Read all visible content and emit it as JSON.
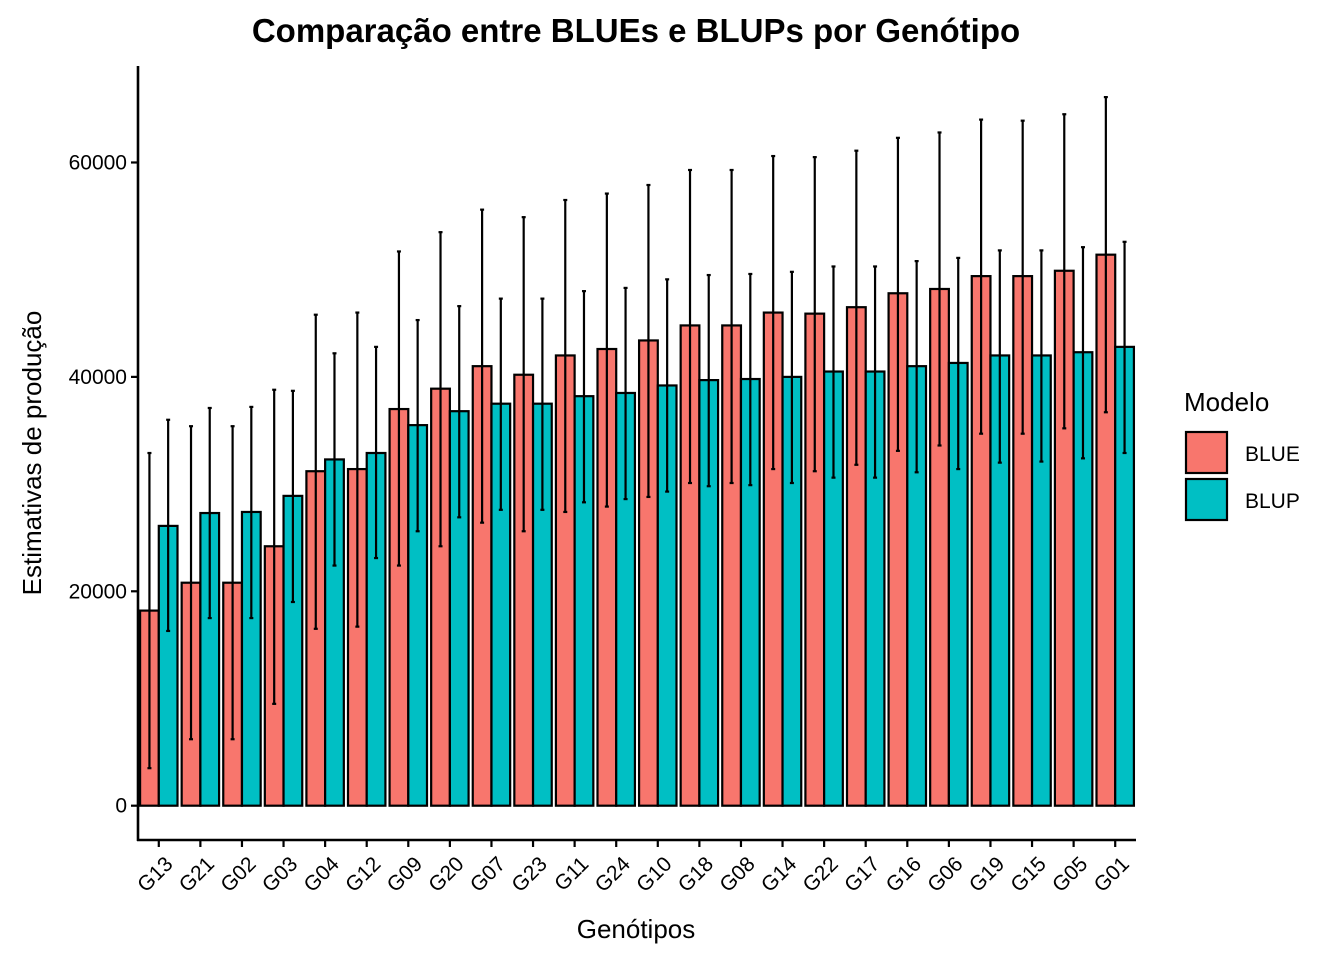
{
  "chart_data": {
    "type": "bar",
    "title": "Comparação entre BLUEs e BLUPs por Genótipo",
    "xlabel": "Genótipos",
    "ylabel": "Estimativas de produção",
    "ylim": [
      -3200,
      69000
    ],
    "yticks": [
      0,
      20000,
      40000,
      60000
    ],
    "ytick_labels": [
      "0",
      "20000",
      "40000",
      "60000"
    ],
    "grid": false,
    "legend": {
      "title": "Modelo",
      "placement": "right"
    },
    "categories": [
      "G13",
      "G21",
      "G02",
      "G03",
      "G04",
      "G12",
      "G09",
      "G20",
      "G07",
      "G23",
      "G11",
      "G24",
      "G10",
      "G18",
      "G08",
      "G14",
      "G22",
      "G17",
      "G16",
      "G06",
      "G19",
      "G15",
      "G05",
      "G01"
    ],
    "series": [
      {
        "name": "BLUE",
        "color": "#F8766D",
        "values": [
          18200,
          20800,
          20800,
          24200,
          31200,
          31400,
          37000,
          38900,
          41000,
          40200,
          42000,
          42600,
          43400,
          44800,
          44800,
          46000,
          45900,
          46500,
          47800,
          48200,
          49400,
          49400,
          49900,
          51400
        ],
        "error_low": [
          3500,
          6200,
          6200,
          9500,
          16500,
          16700,
          22400,
          24200,
          26400,
          25600,
          27400,
          27900,
          28800,
          30100,
          30100,
          31400,
          31200,
          31800,
          33100,
          33600,
          34700,
          34700,
          35200,
          36700
        ],
        "error_high": [
          32900,
          35400,
          35400,
          38800,
          45800,
          46000,
          51700,
          53500,
          55600,
          54900,
          56500,
          57100,
          57900,
          59300,
          59300,
          60600,
          60500,
          61100,
          62300,
          62800,
          64000,
          63900,
          64500,
          66100
        ]
      },
      {
        "name": "BLUP",
        "color": "#00BFC4",
        "values": [
          26100,
          27300,
          27400,
          28900,
          32300,
          32900,
          35500,
          36800,
          37500,
          37500,
          38200,
          38500,
          39200,
          39700,
          39800,
          40000,
          40500,
          40500,
          41000,
          41300,
          42000,
          42000,
          42300,
          42800
        ],
        "error_low": [
          16300,
          17500,
          17500,
          19000,
          22400,
          23100,
          25600,
          26900,
          27600,
          27600,
          28300,
          28600,
          29300,
          29800,
          29900,
          30100,
          30600,
          30600,
          31100,
          31400,
          32000,
          32100,
          32400,
          32900
        ],
        "error_high": [
          36000,
          37100,
          37200,
          38700,
          42200,
          42800,
          45300,
          46600,
          47300,
          47300,
          48000,
          48300,
          49100,
          49500,
          49600,
          49800,
          50300,
          50300,
          50800,
          51100,
          51800,
          51800,
          52100,
          52600
        ]
      }
    ]
  }
}
